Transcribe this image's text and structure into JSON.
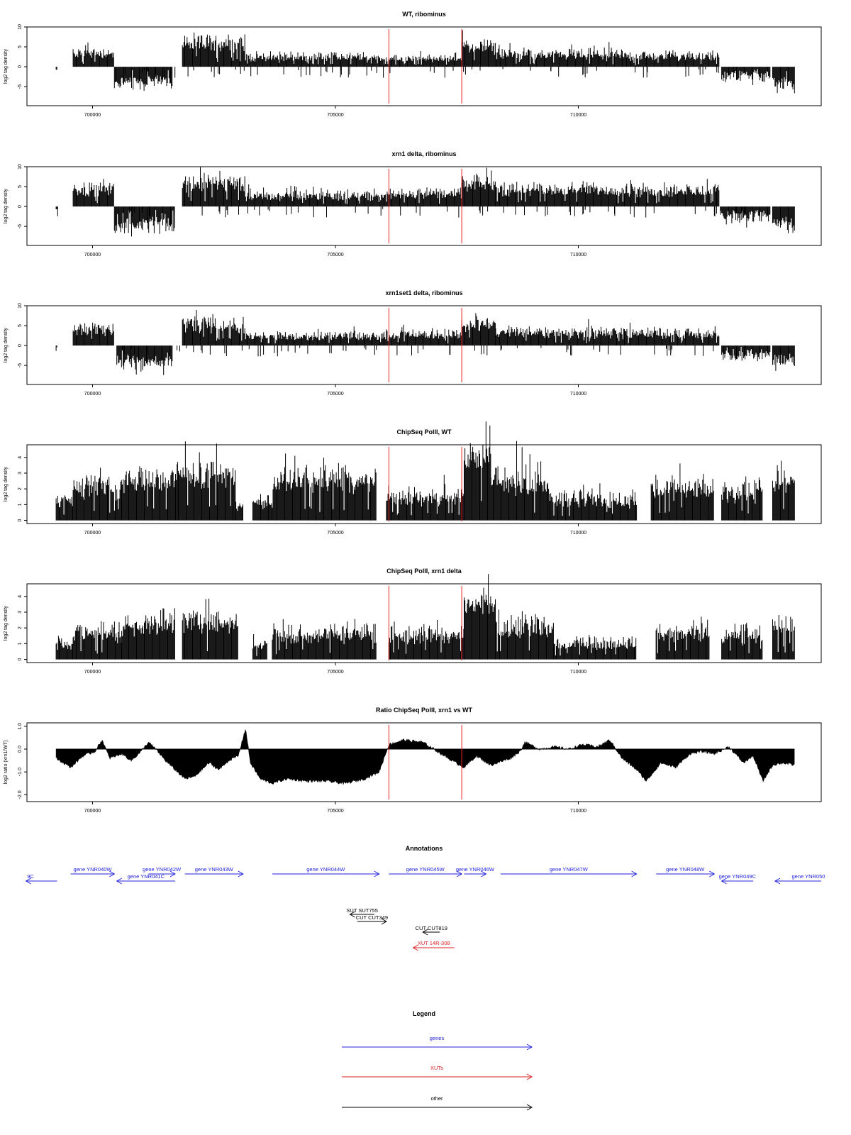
{
  "colors": {
    "axis": "#000000",
    "marker": "#ee2222",
    "gene": "#2222dd",
    "xut": "#dd2222",
    "other": "#000000",
    "signal": "#000000"
  },
  "x_ticks": [
    700000,
    705000,
    710000
  ],
  "x_range": [
    698650,
    715000
  ],
  "markers": [
    706100,
    707600
  ],
  "chart_data": [
    {
      "type": "bar",
      "title": "WT, ribominus",
      "ylabel": "log2 tag density",
      "ylim": [
        -9.8,
        10
      ],
      "yticks": [
        -5,
        0,
        5,
        10
      ],
      "profile": [
        {
          "x0": 699250,
          "x1": 699280,
          "lo": -3.5,
          "hi": 0,
          "var": 0.3
        },
        {
          "x0": 699600,
          "x1": 700450,
          "lo": 1.2,
          "hi": 4.5,
          "var": 0.45
        },
        {
          "x0": 700450,
          "x1": 701650,
          "lo": -6.5,
          "hi": -2.5,
          "var": 0.4
        },
        {
          "x0": 701850,
          "x1": 703150,
          "lo": 2.5,
          "hi": 7.5,
          "var": 0.4
        },
        {
          "x0": 703150,
          "x1": 706000,
          "lo": 0.8,
          "hi": 3.2,
          "var": 0.5
        },
        {
          "x0": 706000,
          "x1": 707600,
          "lo": 0.8,
          "hi": 2.6,
          "var": 0.5
        },
        {
          "x0": 707600,
          "x1": 708400,
          "lo": 2.5,
          "hi": 6.0,
          "var": 0.45
        },
        {
          "x0": 708400,
          "x1": 711000,
          "lo": 1.0,
          "hi": 4.0,
          "var": 0.5
        },
        {
          "x0": 711000,
          "x1": 712900,
          "lo": 0.8,
          "hi": 3.5,
          "var": 0.5
        },
        {
          "x0": 712950,
          "x1": 713950,
          "lo": -5.0,
          "hi": -1.0,
          "var": 0.5
        },
        {
          "x0": 714000,
          "x1": 714450,
          "lo": -8.0,
          "hi": -3.0,
          "var": 0.4
        }
      ]
    },
    {
      "type": "bar",
      "title": "xrn1 delta, ribominus",
      "ylabel": "log2 tag density",
      "ylim": [
        -9.8,
        10
      ],
      "yticks": [
        -5,
        0,
        5,
        10
      ],
      "profile": [
        {
          "x0": 699250,
          "x1": 699290,
          "lo": -5.5,
          "hi": 0,
          "var": 0.3
        },
        {
          "x0": 699600,
          "x1": 700450,
          "lo": 1.5,
          "hi": 5.5,
          "var": 0.4
        },
        {
          "x0": 700450,
          "x1": 701700,
          "lo": -8.0,
          "hi": -3.0,
          "var": 0.4
        },
        {
          "x0": 701850,
          "x1": 703150,
          "lo": 2.5,
          "hi": 7.5,
          "var": 0.4
        },
        {
          "x0": 703150,
          "x1": 706000,
          "lo": 0.8,
          "hi": 3.5,
          "var": 0.5
        },
        {
          "x0": 706000,
          "x1": 707600,
          "lo": 1.5,
          "hi": 4.0,
          "var": 0.45
        },
        {
          "x0": 707600,
          "x1": 708300,
          "lo": 3.0,
          "hi": 7.0,
          "var": 0.4
        },
        {
          "x0": 708300,
          "x1": 711000,
          "lo": 1.5,
          "hi": 5.5,
          "var": 0.45
        },
        {
          "x0": 711000,
          "x1": 712900,
          "lo": 1.5,
          "hi": 5.0,
          "var": 0.45
        },
        {
          "x0": 712950,
          "x1": 713950,
          "lo": -5.5,
          "hi": -1.0,
          "var": 0.5
        },
        {
          "x0": 714000,
          "x1": 714450,
          "lo": -7.5,
          "hi": -2.5,
          "var": 0.4
        }
      ]
    },
    {
      "type": "bar",
      "title": "xrn1set1 delta, ribominus",
      "ylabel": "log2 tag density",
      "ylim": [
        -9.8,
        10
      ],
      "yticks": [
        -5,
        0,
        5,
        10
      ],
      "profile": [
        {
          "x0": 699250,
          "x1": 699280,
          "lo": -2.5,
          "hi": 0,
          "var": 0.3
        },
        {
          "x0": 699600,
          "x1": 700450,
          "lo": 1.5,
          "hi": 5.0,
          "var": 0.45
        },
        {
          "x0": 700500,
          "x1": 701650,
          "lo": -7.0,
          "hi": -2.5,
          "var": 0.4
        },
        {
          "x0": 701850,
          "x1": 703150,
          "lo": 2.0,
          "hi": 6.5,
          "var": 0.45
        },
        {
          "x0": 703150,
          "x1": 706000,
          "lo": 0.8,
          "hi": 3.0,
          "var": 0.5
        },
        {
          "x0": 706000,
          "x1": 707600,
          "lo": 1.0,
          "hi": 3.5,
          "var": 0.5
        },
        {
          "x0": 707600,
          "x1": 708300,
          "lo": 2.5,
          "hi": 6.5,
          "var": 0.45
        },
        {
          "x0": 708300,
          "x1": 711000,
          "lo": 1.0,
          "hi": 4.5,
          "var": 0.5
        },
        {
          "x0": 711000,
          "x1": 712900,
          "lo": 1.0,
          "hi": 4.0,
          "var": 0.5
        },
        {
          "x0": 712950,
          "x1": 713950,
          "lo": -5.0,
          "hi": -1.0,
          "var": 0.5
        },
        {
          "x0": 714000,
          "x1": 714450,
          "lo": -6.0,
          "hi": -2.0,
          "var": 0.4
        }
      ]
    },
    {
      "type": "bar",
      "title": "ChipSeq PolII, WT",
      "ylabel": "log2 tag density",
      "ylim": [
        -0.2,
        4.8
      ],
      "yticks": [
        0,
        1,
        2,
        3,
        4
      ],
      "profile": [
        {
          "x0": 699250,
          "x1": 699600,
          "lo": 0.6,
          "hi": 1.5,
          "var": 0.5
        },
        {
          "x0": 699600,
          "x1": 700600,
          "lo": 1.0,
          "hi": 2.6,
          "var": 0.5
        },
        {
          "x0": 700600,
          "x1": 701750,
          "lo": 1.5,
          "hi": 3.0,
          "var": 0.45
        },
        {
          "x0": 701750,
          "x1": 702950,
          "lo": 2.0,
          "hi": 3.3,
          "var": 0.4
        },
        {
          "x0": 702950,
          "x1": 703100,
          "lo": 0.5,
          "hi": 1.0,
          "var": 0.5
        },
        {
          "x0": 703300,
          "x1": 703700,
          "lo": 0.6,
          "hi": 1.5,
          "var": 0.5
        },
        {
          "x0": 703700,
          "x1": 705850,
          "lo": 1.5,
          "hi": 3.0,
          "var": 0.45
        },
        {
          "x0": 706050,
          "x1": 707650,
          "lo": 0.8,
          "hi": 1.8,
          "var": 0.5
        },
        {
          "x0": 707650,
          "x1": 708200,
          "lo": 3.0,
          "hi": 4.5,
          "var": 0.25
        },
        {
          "x0": 708200,
          "x1": 709400,
          "lo": 1.2,
          "hi": 3.2,
          "var": 0.45
        },
        {
          "x0": 709400,
          "x1": 711200,
          "lo": 0.6,
          "hi": 1.6,
          "var": 0.5
        },
        {
          "x0": 711500,
          "x1": 712800,
          "lo": 1.0,
          "hi": 2.5,
          "var": 0.5
        },
        {
          "x0": 712950,
          "x1": 713800,
          "lo": 0.8,
          "hi": 2.3,
          "var": 0.5
        },
        {
          "x0": 714000,
          "x1": 714450,
          "lo": 1.5,
          "hi": 3.0,
          "var": 0.4
        }
      ]
    },
    {
      "type": "bar",
      "title": "ChipSeq PolII, xrn1 delta",
      "ylabel": "log2 tag density",
      "ylim": [
        -0.2,
        4.8
      ],
      "yticks": [
        0,
        1,
        2,
        3,
        4
      ],
      "profile": [
        {
          "x0": 699250,
          "x1": 699600,
          "lo": 0.4,
          "hi": 1.3,
          "var": 0.5
        },
        {
          "x0": 699600,
          "x1": 700600,
          "lo": 0.8,
          "hi": 2.0,
          "var": 0.5
        },
        {
          "x0": 700600,
          "x1": 701700,
          "lo": 1.2,
          "hi": 2.8,
          "var": 0.45
        },
        {
          "x0": 701850,
          "x1": 703000,
          "lo": 1.5,
          "hi": 2.8,
          "var": 0.4
        },
        {
          "x0": 703300,
          "x1": 703600,
          "lo": 0.5,
          "hi": 1.0,
          "var": 0.5
        },
        {
          "x0": 703700,
          "x1": 705850,
          "lo": 0.8,
          "hi": 2.0,
          "var": 0.5
        },
        {
          "x0": 706100,
          "x1": 707650,
          "lo": 0.8,
          "hi": 1.9,
          "var": 0.5
        },
        {
          "x0": 707650,
          "x1": 708300,
          "lo": 2.8,
          "hi": 3.9,
          "var": 0.25
        },
        {
          "x0": 708300,
          "x1": 709500,
          "lo": 1.0,
          "hi": 2.5,
          "var": 0.45
        },
        {
          "x0": 709500,
          "x1": 711200,
          "lo": 0.4,
          "hi": 1.3,
          "var": 0.5
        },
        {
          "x0": 711600,
          "x1": 712700,
          "lo": 0.8,
          "hi": 2.0,
          "var": 0.5
        },
        {
          "x0": 712950,
          "x1": 713800,
          "lo": 0.6,
          "hi": 2.0,
          "var": 0.5
        },
        {
          "x0": 714000,
          "x1": 714450,
          "lo": 1.2,
          "hi": 2.5,
          "var": 0.4
        }
      ]
    },
    {
      "type": "area",
      "title": "Ratio ChipSeq PolII, xrn1 vs WT",
      "ylabel": "log2 ratio (xrn1/WT)",
      "ylim": [
        -2.3,
        1.15
      ],
      "yticks": [
        -2.0,
        -1.0,
        0.0,
        1.0
      ],
      "ytick_labels": [
        "-2.0",
        "-1.0",
        "0.0",
        "1.0"
      ],
      "x": [
        699250,
        699550,
        699800,
        700050,
        700200,
        700350,
        700600,
        700800,
        701000,
        701150,
        701300,
        701500,
        701700,
        701900,
        702100,
        702400,
        702600,
        702800,
        703000,
        703150,
        703250,
        703450,
        703700,
        704000,
        704400,
        704800,
        705200,
        705600,
        705900,
        706100,
        706400,
        706800,
        707100,
        707400,
        707650,
        707900,
        708200,
        708600,
        708800,
        708900,
        709200,
        709500,
        709800,
        710100,
        710400,
        710650,
        710900,
        711200,
        711400,
        711700,
        712000,
        712300,
        712550,
        712800,
        713100,
        713400,
        713600,
        713800,
        714000,
        714200,
        714450
      ],
      "y": [
        -0.4,
        -0.8,
        -0.3,
        -0.1,
        0.4,
        -0.4,
        -0.2,
        -0.5,
        -0.1,
        0.3,
        0.0,
        -0.5,
        -0.9,
        -1.3,
        -1.2,
        -0.6,
        -0.9,
        -0.5,
        -0.3,
        0.9,
        -0.6,
        -1.3,
        -1.5,
        -1.3,
        -1.4,
        -1.4,
        -1.5,
        -1.3,
        -1.0,
        0.2,
        0.4,
        0.3,
        -0.1,
        -0.5,
        -0.8,
        -0.3,
        -0.7,
        -0.4,
        -0.1,
        0.3,
        0.0,
        0.1,
        0.0,
        0.2,
        0.1,
        0.4,
        -0.4,
        -0.9,
        -1.4,
        -0.6,
        -0.8,
        -0.2,
        -0.1,
        -0.2,
        0.1,
        -0.6,
        -0.3,
        -1.4,
        -0.7,
        -0.6,
        -0.7
      ]
    }
  ],
  "annotations": {
    "title": "Annotations",
    "genes": [
      {
        "label": "9C",
        "x0": 698630,
        "x1": 699270,
        "dir": "-",
        "row": 1
      },
      {
        "label": "gene YNR040W",
        "x0": 699550,
        "x1": 700450,
        "dir": "+",
        "row": 0
      },
      {
        "label": "gene YNR041C",
        "x0": 700500,
        "x1": 701700,
        "dir": "-",
        "row": 1
      },
      {
        "label": "gene YNR042W",
        "x0": 701150,
        "x1": 701700,
        "dir": "+",
        "row": 0
      },
      {
        "label": "gene YNR043W",
        "x0": 701900,
        "x1": 703100,
        "dir": "+",
        "row": 0
      },
      {
        "label": "gene YNR044W",
        "x0": 703700,
        "x1": 705900,
        "dir": "+",
        "row": 0
      },
      {
        "label": "gene YNR045W",
        "x0": 706100,
        "x1": 707600,
        "dir": "+",
        "row": 0
      },
      {
        "label": "gene YNR046W",
        "x0": 707650,
        "x1": 708100,
        "dir": "+",
        "row": 0
      },
      {
        "label": "gene YNR047W",
        "x0": 708400,
        "x1": 711200,
        "dir": "+",
        "row": 0
      },
      {
        "label": "gene YNR048W",
        "x0": 711600,
        "x1": 712800,
        "dir": "+",
        "row": 0
      },
      {
        "label": "gene YNR049C",
        "x0": 712950,
        "x1": 713600,
        "dir": "-",
        "row": 1
      },
      {
        "label": "gene YNR050",
        "x0": 714050,
        "x1": 715000,
        "dir": "-",
        "row": 1
      }
    ],
    "others": [
      {
        "label": "SUT SUT755",
        "x0": 705300,
        "x1": 705800,
        "dir": "-",
        "row": 0
      },
      {
        "label": "CUT CUT349",
        "x0": 705450,
        "x1": 706050,
        "dir": "+",
        "row": 1
      },
      {
        "label": "CUT CUT819",
        "x0": 706800,
        "x1": 707150,
        "dir": "-",
        "row": 2
      }
    ],
    "xuts": [
      {
        "label": "XUT 14R-308",
        "x0": 706600,
        "x1": 707450,
        "dir": "-"
      }
    ]
  },
  "legend": {
    "title": "Legend",
    "items": [
      {
        "label": "genes",
        "kind": "gene"
      },
      {
        "label": "XUTs",
        "kind": "xut"
      },
      {
        "label": "other",
        "kind": "other"
      }
    ]
  }
}
